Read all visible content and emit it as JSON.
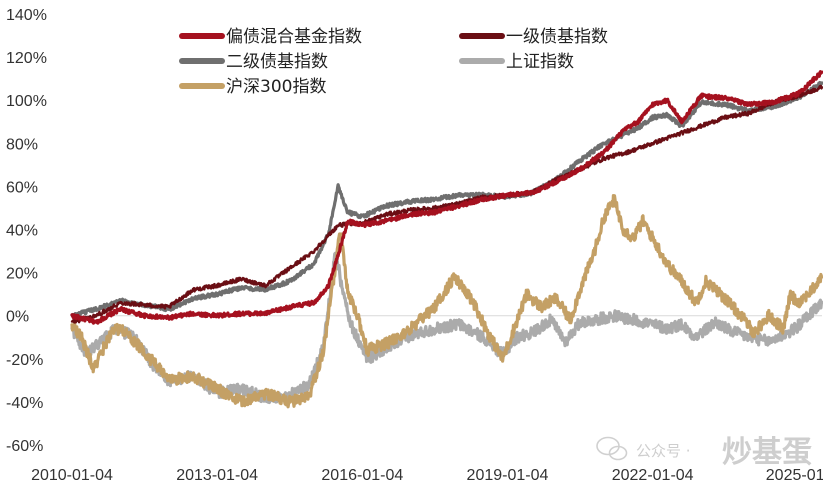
{
  "chart_data": {
    "type": "line",
    "title": "",
    "xlabel": "",
    "ylabel": "",
    "x_unit": "year",
    "x_range": [
      2010.0,
      2025.5
    ],
    "ylim": [
      -60,
      140
    ],
    "y_ticks": [
      -60,
      -40,
      -20,
      0,
      20,
      40,
      60,
      80,
      100,
      120,
      140
    ],
    "y_tick_labels": [
      "-60%",
      "-40%",
      "-20%",
      "0%",
      "20%",
      "40%",
      "60%",
      "80%",
      "100%",
      "120%",
      "140%"
    ],
    "x_ticks": [
      2010.0,
      2013.0,
      2016.0,
      2019.0,
      2022.0,
      2025.0
    ],
    "x_tick_labels": [
      "2010-01-04",
      "2013-01-04",
      "2016-01-04",
      "2019-01-04",
      "2022-01-04",
      "2025-01-"
    ],
    "grid": false,
    "zero_line": true,
    "legend_position": "top-left",
    "series": [
      {
        "name": "偏债混合基金指数",
        "color": "#a5111f",
        "width": 4,
        "points": [
          [
            2010.0,
            0
          ],
          [
            2010.5,
            -3
          ],
          [
            2011.0,
            3
          ],
          [
            2011.5,
            0
          ],
          [
            2012.0,
            -1
          ],
          [
            2012.5,
            1
          ],
          [
            2013.0,
            0
          ],
          [
            2013.5,
            1
          ],
          [
            2014.0,
            1
          ],
          [
            2014.5,
            4
          ],
          [
            2015.0,
            6
          ],
          [
            2015.3,
            14
          ],
          [
            2015.5,
            28
          ],
          [
            2015.7,
            44
          ],
          [
            2016.0,
            42
          ],
          [
            2016.5,
            44
          ],
          [
            2017.0,
            47
          ],
          [
            2017.5,
            48
          ],
          [
            2018.0,
            51
          ],
          [
            2018.5,
            54
          ],
          [
            2019.0,
            56
          ],
          [
            2019.5,
            57
          ],
          [
            2020.0,
            62
          ],
          [
            2020.5,
            68
          ],
          [
            2021.0,
            76
          ],
          [
            2021.4,
            86
          ],
          [
            2021.7,
            90
          ],
          [
            2022.0,
            98
          ],
          [
            2022.3,
            100
          ],
          [
            2022.6,
            90
          ],
          [
            2023.0,
            102
          ],
          [
            2023.5,
            101
          ],
          [
            2024.0,
            98
          ],
          [
            2024.5,
            99
          ],
          [
            2025.0,
            103
          ],
          [
            2025.5,
            113
          ]
        ]
      },
      {
        "name": "一级债基指数",
        "color": "#6a0e14",
        "width": 3,
        "points": [
          [
            2010.0,
            -3
          ],
          [
            2010.5,
            0
          ],
          [
            2011.0,
            6
          ],
          [
            2011.5,
            5
          ],
          [
            2012.0,
            4
          ],
          [
            2012.5,
            12
          ],
          [
            2013.0,
            14
          ],
          [
            2013.5,
            17
          ],
          [
            2014.0,
            14
          ],
          [
            2014.5,
            22
          ],
          [
            2015.0,
            30
          ],
          [
            2015.5,
            42
          ],
          [
            2016.0,
            43
          ],
          [
            2016.5,
            47
          ],
          [
            2017.0,
            49
          ],
          [
            2017.5,
            50
          ],
          [
            2018.0,
            52
          ],
          [
            2018.5,
            55
          ],
          [
            2019.0,
            56
          ],
          [
            2019.5,
            57
          ],
          [
            2020.0,
            63
          ],
          [
            2020.5,
            68
          ],
          [
            2021.0,
            73
          ],
          [
            2021.5,
            76
          ],
          [
            2022.0,
            80
          ],
          [
            2022.5,
            84
          ],
          [
            2023.0,
            88
          ],
          [
            2023.5,
            92
          ],
          [
            2024.0,
            94
          ],
          [
            2024.5,
            99
          ],
          [
            2025.0,
            102
          ],
          [
            2025.5,
            106
          ]
        ]
      },
      {
        "name": "二级债基指数",
        "color": "#6f6f6f",
        "width": 4,
        "points": [
          [
            2010.0,
            0
          ],
          [
            2010.5,
            3
          ],
          [
            2011.0,
            7
          ],
          [
            2011.5,
            5
          ],
          [
            2012.0,
            3
          ],
          [
            2012.5,
            8
          ],
          [
            2013.0,
            10
          ],
          [
            2013.5,
            13
          ],
          [
            2014.0,
            12
          ],
          [
            2014.5,
            16
          ],
          [
            2015.0,
            24
          ],
          [
            2015.3,
            38
          ],
          [
            2015.5,
            60
          ],
          [
            2015.7,
            48
          ],
          [
            2016.0,
            46
          ],
          [
            2016.5,
            51
          ],
          [
            2017.0,
            53
          ],
          [
            2017.5,
            54
          ],
          [
            2018.0,
            56
          ],
          [
            2018.5,
            56
          ],
          [
            2019.0,
            55
          ],
          [
            2019.5,
            57
          ],
          [
            2020.0,
            63
          ],
          [
            2020.5,
            72
          ],
          [
            2021.0,
            80
          ],
          [
            2021.4,
            84
          ],
          [
            2021.7,
            87
          ],
          [
            2022.0,
            92
          ],
          [
            2022.3,
            93
          ],
          [
            2022.6,
            88
          ],
          [
            2023.0,
            99
          ],
          [
            2023.5,
            98
          ],
          [
            2024.0,
            95
          ],
          [
            2024.5,
            97
          ],
          [
            2025.0,
            101
          ],
          [
            2025.5,
            108
          ]
        ]
      },
      {
        "name": "上证指数",
        "color": "#ababab",
        "width": 4,
        "points": [
          [
            2010.0,
            -6
          ],
          [
            2010.3,
            -18
          ],
          [
            2010.6,
            -12
          ],
          [
            2010.9,
            -6
          ],
          [
            2011.3,
            -10
          ],
          [
            2011.7,
            -24
          ],
          [
            2012.0,
            -30
          ],
          [
            2012.5,
            -28
          ],
          [
            2013.0,
            -36
          ],
          [
            2013.5,
            -34
          ],
          [
            2014.0,
            -38
          ],
          [
            2014.5,
            -37
          ],
          [
            2014.9,
            -32
          ],
          [
            2015.2,
            -14
          ],
          [
            2015.45,
            30
          ],
          [
            2015.6,
            10
          ],
          [
            2015.8,
            -6
          ],
          [
            2016.1,
            -20
          ],
          [
            2016.6,
            -14
          ],
          [
            2017.0,
            -9
          ],
          [
            2017.5,
            -6
          ],
          [
            2018.0,
            -4
          ],
          [
            2018.5,
            -10
          ],
          [
            2018.9,
            -18
          ],
          [
            2019.2,
            -10
          ],
          [
            2019.5,
            -8
          ],
          [
            2019.9,
            -2
          ],
          [
            2020.2,
            -12
          ],
          [
            2020.5,
            -3
          ],
          [
            2020.8,
            -2
          ],
          [
            2021.2,
            0
          ],
          [
            2021.6,
            -2
          ],
          [
            2022.0,
            -4
          ],
          [
            2022.3,
            -6
          ],
          [
            2022.6,
            -4
          ],
          [
            2022.9,
            -10
          ],
          [
            2023.3,
            -3
          ],
          [
            2023.6,
            -7
          ],
          [
            2024.0,
            -10
          ],
          [
            2024.4,
            -12
          ],
          [
            2024.8,
            -8
          ],
          [
            2025.0,
            -5
          ],
          [
            2025.3,
            2
          ],
          [
            2025.5,
            6
          ]
        ]
      },
      {
        "name": "沪深300指数",
        "color": "#c4a065",
        "width": 4,
        "points": [
          [
            2010.0,
            -4
          ],
          [
            2010.2,
            -10
          ],
          [
            2010.45,
            -25
          ],
          [
            2010.8,
            -8
          ],
          [
            2011.0,
            -6
          ],
          [
            2011.3,
            -12
          ],
          [
            2011.7,
            -22
          ],
          [
            2012.0,
            -30
          ],
          [
            2012.5,
            -28
          ],
          [
            2013.0,
            -34
          ],
          [
            2013.5,
            -40
          ],
          [
            2014.0,
            -36
          ],
          [
            2014.5,
            -40
          ],
          [
            2014.9,
            -38
          ],
          [
            2015.2,
            -16
          ],
          [
            2015.45,
            24
          ],
          [
            2015.55,
            40
          ],
          [
            2015.7,
            10
          ],
          [
            2015.9,
            0
          ],
          [
            2016.1,
            -16
          ],
          [
            2016.6,
            -12
          ],
          [
            2017.0,
            -6
          ],
          [
            2017.5,
            4
          ],
          [
            2017.9,
            18
          ],
          [
            2018.3,
            6
          ],
          [
            2018.6,
            -8
          ],
          [
            2018.9,
            -20
          ],
          [
            2019.2,
            -2
          ],
          [
            2019.4,
            10
          ],
          [
            2019.7,
            4
          ],
          [
            2020.0,
            8
          ],
          [
            2020.3,
            -2
          ],
          [
            2020.5,
            12
          ],
          [
            2020.8,
            30
          ],
          [
            2021.0,
            46
          ],
          [
            2021.2,
            54
          ],
          [
            2021.4,
            40
          ],
          [
            2021.6,
            36
          ],
          [
            2021.8,
            44
          ],
          [
            2022.0,
            36
          ],
          [
            2022.3,
            24
          ],
          [
            2022.6,
            16
          ],
          [
            2022.9,
            6
          ],
          [
            2023.1,
            16
          ],
          [
            2023.5,
            8
          ],
          [
            2023.9,
            -2
          ],
          [
            2024.1,
            -8
          ],
          [
            2024.4,
            0
          ],
          [
            2024.7,
            -6
          ],
          [
            2024.85,
            10
          ],
          [
            2025.0,
            6
          ],
          [
            2025.3,
            12
          ],
          [
            2025.5,
            18
          ]
        ]
      }
    ]
  },
  "watermark": {
    "prefix": "公众号 ·",
    "name": "炒基蛋"
  }
}
